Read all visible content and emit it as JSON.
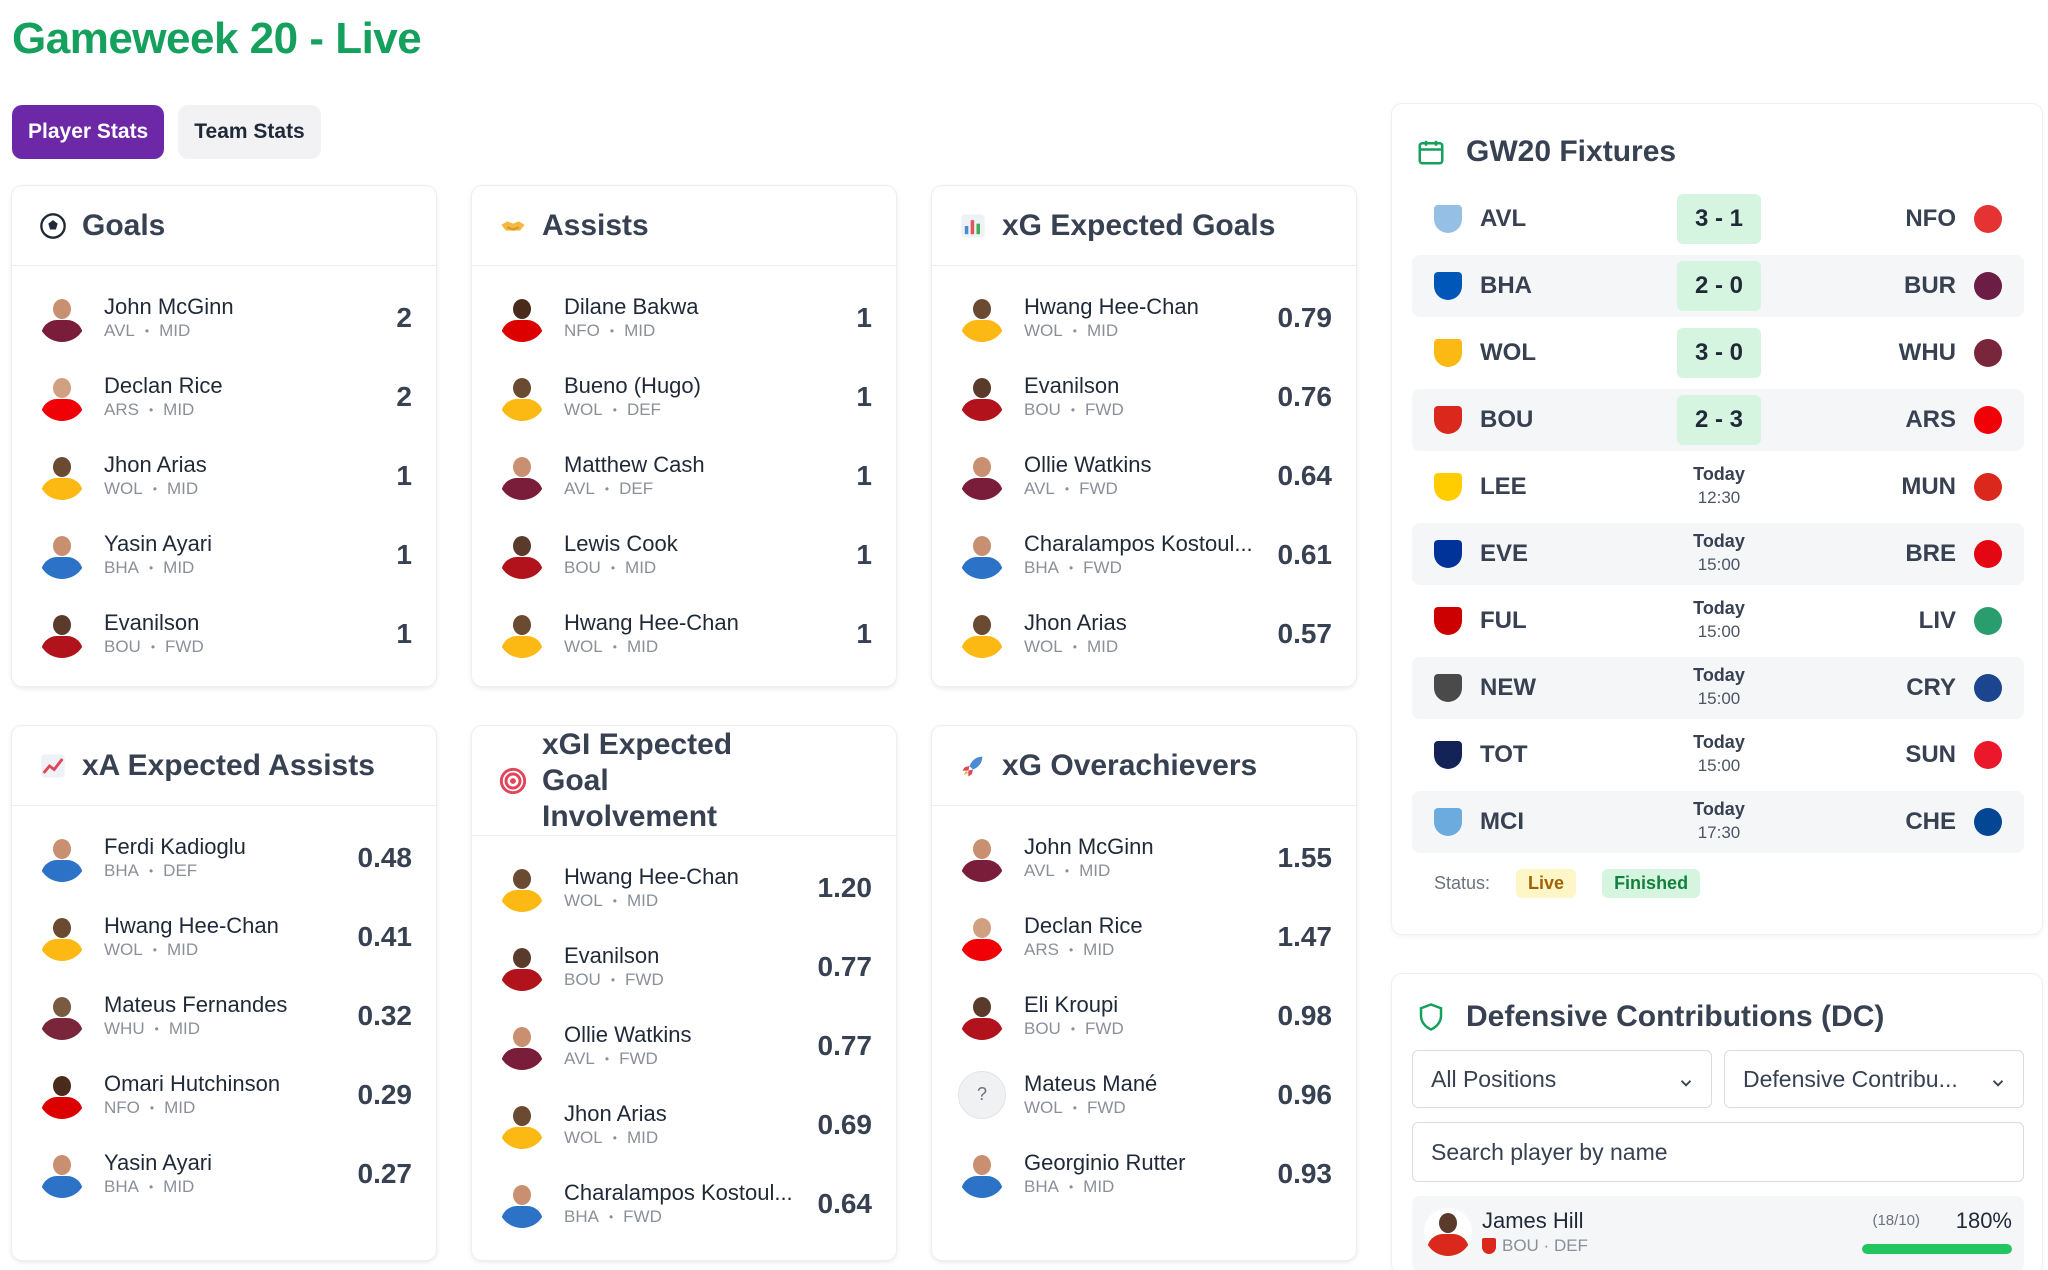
{
  "page": {
    "title": "Gameweek 20 - Live"
  },
  "tabs": [
    {
      "label": "Player Stats",
      "active": true
    },
    {
      "label": "Team Stats",
      "active": false
    }
  ],
  "cards": [
    {
      "id": "goals",
      "title": "Goals",
      "icon": "soccer-ball-icon",
      "players": [
        {
          "name": "John McGinn",
          "team": "AVL",
          "pos": "MID",
          "value": "2",
          "kit": "avl"
        },
        {
          "name": "Declan Rice",
          "team": "ARS",
          "pos": "MID",
          "value": "2",
          "kit": "ars"
        },
        {
          "name": "Jhon Arias",
          "team": "WOL",
          "pos": "MID",
          "value": "1",
          "kit": "wol"
        },
        {
          "name": "Yasin Ayari",
          "team": "BHA",
          "pos": "MID",
          "value": "1",
          "kit": "bha"
        },
        {
          "name": "Evanilson",
          "team": "BOU",
          "pos": "FWD",
          "value": "1",
          "kit": "bou"
        }
      ]
    },
    {
      "id": "assists",
      "title": "Assists",
      "icon": "handshake-icon",
      "players": [
        {
          "name": "Dilane Bakwa",
          "team": "NFO",
          "pos": "MID",
          "value": "1",
          "kit": "nfo"
        },
        {
          "name": "Bueno (Hugo)",
          "team": "WOL",
          "pos": "DEF",
          "value": "1",
          "kit": "wol"
        },
        {
          "name": "Matthew Cash",
          "team": "AVL",
          "pos": "DEF",
          "value": "1",
          "kit": "avl"
        },
        {
          "name": "Lewis Cook",
          "team": "BOU",
          "pos": "MID",
          "value": "1",
          "kit": "bou"
        },
        {
          "name": "Hwang Hee-Chan",
          "team": "WOL",
          "pos": "MID",
          "value": "1",
          "kit": "wol"
        }
      ]
    },
    {
      "id": "xg",
      "title": "xG Expected Goals",
      "icon": "bar-chart-icon",
      "players": [
        {
          "name": "Hwang Hee-Chan",
          "team": "WOL",
          "pos": "MID",
          "value": "0.79",
          "kit": "wol"
        },
        {
          "name": "Evanilson",
          "team": "BOU",
          "pos": "FWD",
          "value": "0.76",
          "kit": "bou"
        },
        {
          "name": "Ollie Watkins",
          "team": "AVL",
          "pos": "FWD",
          "value": "0.64",
          "kit": "avl"
        },
        {
          "name": "Charalampos Kostoul...",
          "team": "BHA",
          "pos": "FWD",
          "value": "0.61",
          "kit": "bha"
        },
        {
          "name": "Jhon Arias",
          "team": "WOL",
          "pos": "MID",
          "value": "0.57",
          "kit": "wol"
        }
      ]
    },
    {
      "id": "xa",
      "title": "xA Expected Assists",
      "icon": "trending-up-icon",
      "players": [
        {
          "name": "Ferdi Kadioglu",
          "team": "BHA",
          "pos": "DEF",
          "value": "0.48",
          "kit": "bha"
        },
        {
          "name": "Hwang Hee-Chan",
          "team": "WOL",
          "pos": "MID",
          "value": "0.41",
          "kit": "wol"
        },
        {
          "name": "Mateus Fernandes",
          "team": "WHU",
          "pos": "MID",
          "value": "0.32",
          "kit": "whu"
        },
        {
          "name": "Omari Hutchinson",
          "team": "NFO",
          "pos": "MID",
          "value": "0.29",
          "kit": "nfo"
        },
        {
          "name": "Yasin Ayari",
          "team": "BHA",
          "pos": "MID",
          "value": "0.27",
          "kit": "bha"
        }
      ]
    },
    {
      "id": "xgi",
      "title": "xGI Expected Goal Involvement",
      "icon": "target-icon",
      "players": [
        {
          "name": "Hwang Hee-Chan",
          "team": "WOL",
          "pos": "MID",
          "value": "1.20",
          "kit": "wol"
        },
        {
          "name": "Evanilson",
          "team": "BOU",
          "pos": "FWD",
          "value": "0.77",
          "kit": "bou"
        },
        {
          "name": "Ollie Watkins",
          "team": "AVL",
          "pos": "FWD",
          "value": "0.77",
          "kit": "avl"
        },
        {
          "name": "Jhon Arias",
          "team": "WOL",
          "pos": "MID",
          "value": "0.69",
          "kit": "wol"
        },
        {
          "name": "Charalampos Kostoul...",
          "team": "BHA",
          "pos": "FWD",
          "value": "0.64",
          "kit": "bha"
        }
      ]
    },
    {
      "id": "overachievers",
      "title": "xG Overachievers",
      "icon": "rocket-icon",
      "players": [
        {
          "name": "John McGinn",
          "team": "AVL",
          "pos": "MID",
          "value": "1.55",
          "kit": "avl"
        },
        {
          "name": "Declan Rice",
          "team": "ARS",
          "pos": "MID",
          "value": "1.47",
          "kit": "ars"
        },
        {
          "name": "Eli Kroupi",
          "team": "BOU",
          "pos": "FWD",
          "value": "0.98",
          "kit": "bou"
        },
        {
          "name": "Mateus Mané",
          "team": "WOL",
          "pos": "FWD",
          "value": "0.96",
          "kit": "unknown",
          "placeholder": "?"
        },
        {
          "name": "Georginio Rutter",
          "team": "BHA",
          "pos": "MID",
          "value": "0.93",
          "kit": "bha"
        }
      ]
    }
  ],
  "fixtures": {
    "title": "GW20 Fixtures",
    "matches": [
      {
        "home": "AVL",
        "away": "NFO",
        "score": "3 - 1",
        "homeColor": "#95bfe5",
        "awayColor": "#e53233"
      },
      {
        "home": "BHA",
        "away": "BUR",
        "score": "2 - 0",
        "homeColor": "#0057b8",
        "awayColor": "#6c1d45"
      },
      {
        "home": "WOL",
        "away": "WHU",
        "score": "3 - 0",
        "homeColor": "#fdb913",
        "awayColor": "#7a263a"
      },
      {
        "home": "BOU",
        "away": "ARS",
        "score": "2 - 3",
        "homeColor": "#da291c",
        "awayColor": "#ef0107"
      },
      {
        "home": "LEE",
        "away": "MUN",
        "day": "Today",
        "time": "12:30",
        "homeColor": "#ffcd00",
        "awayColor": "#da291c"
      },
      {
        "home": "EVE",
        "away": "BRE",
        "day": "Today",
        "time": "15:00",
        "homeColor": "#003399",
        "awayColor": "#e30613"
      },
      {
        "home": "FUL",
        "away": "LIV",
        "day": "Today",
        "time": "15:00",
        "homeColor": "#cc0000",
        "awayColor": "#2a9d6e"
      },
      {
        "home": "NEW",
        "away": "CRY",
        "day": "Today",
        "time": "15:00",
        "homeColor": "#4a4a4a",
        "awayColor": "#1b458f"
      },
      {
        "home": "TOT",
        "away": "SUN",
        "day": "Today",
        "time": "15:00",
        "homeColor": "#132257",
        "awayColor": "#eb172b"
      },
      {
        "home": "MCI",
        "away": "CHE",
        "day": "Today",
        "time": "17:30",
        "homeColor": "#6cabdd",
        "awayColor": "#034694"
      }
    ],
    "status_label": "Status:",
    "status_live": "Live",
    "status_finished": "Finished"
  },
  "dc": {
    "title": "Defensive Contributions (DC)",
    "position_select": "All Positions",
    "metric_select": "Defensive Contribu...",
    "search_placeholder": "Search player by name",
    "player": {
      "name": "James Hill",
      "meta": "BOU · DEF",
      "fraction": "(18/10)",
      "percent": "180%",
      "fill": 1.0
    }
  },
  "colors": {
    "accent": "#6d28a8",
    "title_green": "#16a05d",
    "score_bg": "#d5f5e0"
  }
}
